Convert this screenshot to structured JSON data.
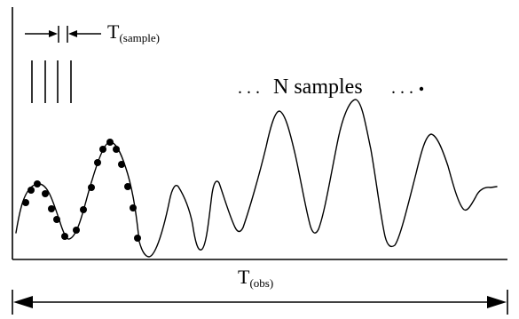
{
  "labels": {
    "sample_period_main": "T",
    "sample_period_sub": "(sample)",
    "n_samples_prefix": ". . .",
    "n_samples_text": "N samples",
    "n_samples_suffix": ". . .",
    "observation_period_main": "T",
    "observation_period_sub": "(obs)"
  },
  "colors": {
    "ink": "#000000",
    "background": "#ffffff"
  }
}
